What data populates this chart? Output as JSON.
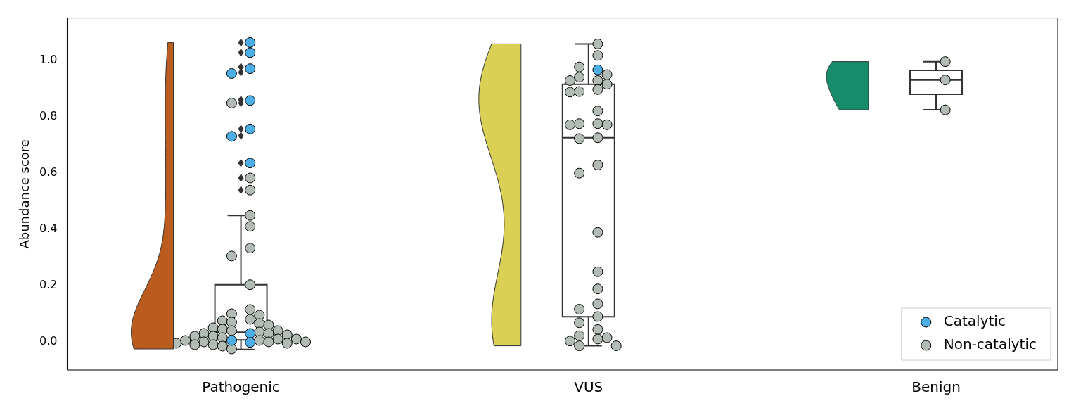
{
  "chart_data": {
    "type": "box",
    "categories": [
      "Pathogenic",
      "VUS",
      "Benign"
    ],
    "ylabel": "Abundance score",
    "ylim": [
      -0.1,
      1.15
    ],
    "yticks": [
      {
        "value": 0,
        "label": "0.0"
      },
      {
        "value": 0.2,
        "label": "0.2"
      },
      {
        "value": 0.4,
        "label": "0.4"
      },
      {
        "value": 0.6,
        "label": "0.6"
      },
      {
        "value": 0.8,
        "label": "0.8"
      },
      {
        "value": 1,
        "label": "1.0"
      }
    ],
    "grid": false,
    "legend": "bottom right",
    "marker": "circle",
    "boxes": [
      {
        "low": -0.027,
        "q1": 0.007,
        "median": 0.034,
        "q3": 0.203,
        "high": 0.449,
        "outliers": [
          1.063,
          1.027,
          0.976,
          0.957,
          0.86,
          0.848,
          0.756,
          0.732,
          0.635,
          0.582,
          0.539
        ]
      },
      {
        "low": -0.014,
        "q1": 0.089,
        "median": 0.725,
        "q3": 0.915,
        "high": 1.058
      },
      {
        "low": 0.824,
        "q1": 0.879,
        "median": 0.93,
        "q3": 0.964,
        "high": 0.995
      }
    ],
    "series": [
      {
        "type": "scatter",
        "name": "Catalytic",
        "color": "#4daee6",
        "x": [
          "Pathogenic",
          "Pathogenic",
          "Pathogenic",
          "Pathogenic",
          "Pathogenic",
          "Pathogenic",
          "Pathogenic",
          "Pathogenic",
          "Pathogenic",
          "Pathogenic",
          "Pathogenic",
          "VUS"
        ],
        "values": [
          1.063,
          1.027,
          0.97,
          0.953,
          0.857,
          0.756,
          0.73,
          0.635,
          0.03,
          0.005,
          -0.002,
          0.966
        ]
      },
      {
        "type": "scatter",
        "name": "Non-catalytic",
        "color": "#b3bcb4",
        "x": [
          "Pathogenic",
          "Pathogenic",
          "Pathogenic",
          "Pathogenic",
          "Pathogenic",
          "Pathogenic",
          "Pathogenic",
          "Pathogenic",
          "Pathogenic",
          "Pathogenic",
          "Pathogenic",
          "Pathogenic",
          "Pathogenic",
          "Pathogenic",
          "Pathogenic",
          "Pathogenic",
          "Pathogenic",
          "Pathogenic",
          "Pathogenic",
          "Pathogenic",
          "Pathogenic",
          "Pathogenic",
          "Pathogenic",
          "Pathogenic",
          "Pathogenic",
          "Pathogenic",
          "Pathogenic",
          "Pathogenic",
          "Pathogenic",
          "Pathogenic",
          "Pathogenic",
          "Pathogenic",
          "Pathogenic",
          "Pathogenic",
          "Pathogenic",
          "Pathogenic",
          "Pathogenic",
          "Pathogenic",
          "Pathogenic",
          "Pathogenic",
          "VUS",
          "VUS",
          "VUS",
          "VUS",
          "VUS",
          "VUS",
          "VUS",
          "VUS",
          "VUS",
          "VUS",
          "VUS",
          "VUS",
          "VUS",
          "VUS",
          "VUS",
          "VUS",
          "VUS",
          "VUS",
          "VUS",
          "VUS",
          "VUS",
          "VUS",
          "VUS",
          "VUS",
          "VUS",
          "VUS",
          "VUS",
          "VUS",
          "VUS",
          "VUS",
          "VUS",
          "VUS",
          "VUS",
          "VUS",
          "Benign",
          "Benign",
          "Benign"
        ],
        "values": [
          0.848,
          0.582,
          0.539,
          0.449,
          0.41,
          0.333,
          0.305,
          0.203,
          0.115,
          0.1,
          0.095,
          0.08,
          0.075,
          0.07,
          0.065,
          0.06,
          0.05,
          0.045,
          0.04,
          0.04,
          0.035,
          0.03,
          0.03,
          0.025,
          0.02,
          0.02,
          0.015,
          0.01,
          0.01,
          0.005,
          0.005,
          0,
          0,
          0,
          -0.005,
          -0.005,
          -0.01,
          -0.01,
          -0.015,
          -0.025,
          1.058,
          1.017,
          0.976,
          0.949,
          0.94,
          0.928,
          0.928,
          0.915,
          0.896,
          0.889,
          0.887,
          0.82,
          0.775,
          0.775,
          0.771,
          0.771,
          0.725,
          0.722,
          0.628,
          0.599,
          0.389,
          0.249,
          0.188,
          0.135,
          0.116,
          0.09,
          0.068,
          0.044,
          0.022,
          0.015,
          0.01,
          0.003,
          -0.014,
          -0.014,
          0.995,
          0.93,
          0.824
        ]
      }
    ]
  }
}
